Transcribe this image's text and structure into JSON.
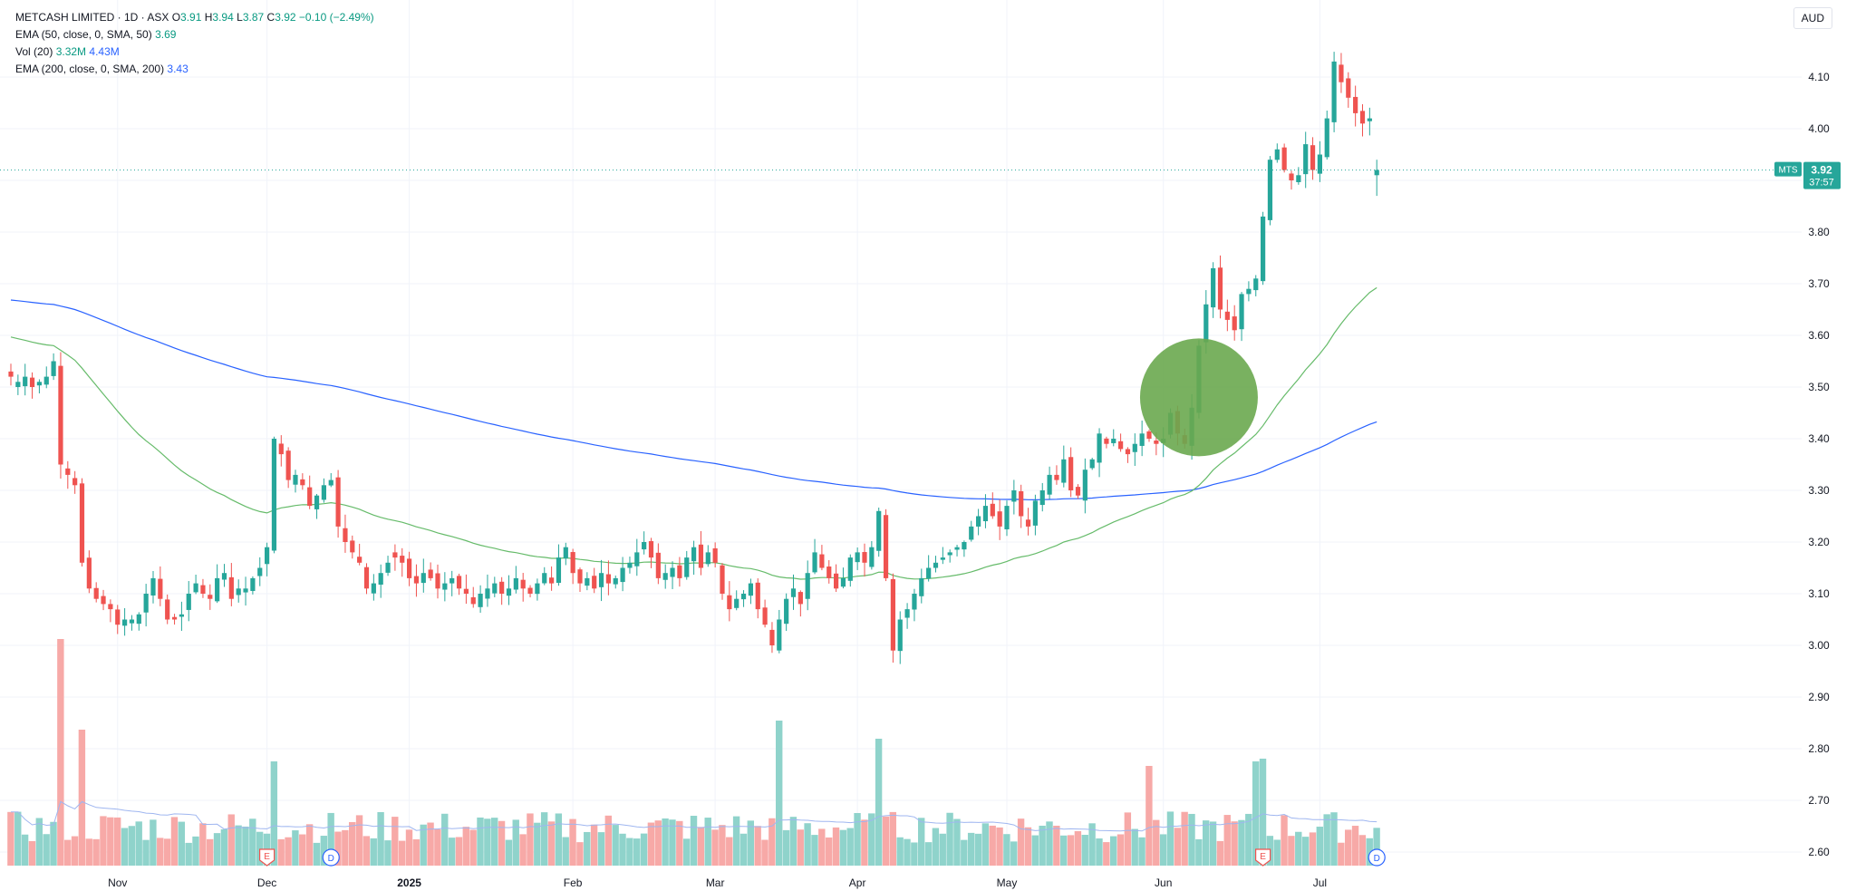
{
  "legend": {
    "title": "METCASH LIMITED · 1D · ASX",
    "ohlc": {
      "o_label": "O",
      "o": "3.91",
      "h_label": "H",
      "h": "3.94",
      "l_label": "L",
      "l": "3.87",
      "c_label": "C",
      "c": "3.92",
      "change": "−0.10 (−2.49%)"
    },
    "ema50": {
      "label": "EMA (50, close, 0, SMA, 50)",
      "value": "3.69"
    },
    "vol": {
      "label": "Vol (20)",
      "value1": "3.32M",
      "value2": "4.43M"
    },
    "ema200": {
      "label": "EMA (200, close, 0, SMA, 200)",
      "value": "3.43"
    }
  },
  "currency": "AUD",
  "price_badge": {
    "symbol": "MTS",
    "price": "3.92",
    "countdown": "37:57"
  },
  "colors": {
    "up": "#26a69a",
    "up_text": "#089981",
    "down": "#ef5350",
    "ema50": "#66bb6a",
    "ema200": "#2962ff",
    "vol_up": "#8fd3cb",
    "vol_down": "#f7a9a7",
    "highlight": "#6aa84f"
  },
  "chart_data": {
    "type": "candlestick",
    "y_axis": {
      "min": 2.55,
      "max": 4.2,
      "ticks": [
        2.6,
        2.7,
        2.8,
        2.9,
        3.0,
        3.1,
        3.2,
        3.3,
        3.4,
        3.5,
        3.6,
        3.7,
        3.8,
        3.9,
        4.0,
        4.1
      ],
      "tick_labels": [
        "2.60",
        "2.70",
        "2.80",
        "2.90",
        "3.00",
        "3.10",
        "3.20",
        "3.30",
        "3.40",
        "3.50",
        "3.60",
        "3.70",
        "3.80",
        "3.90",
        "4.00",
        "4.10"
      ]
    },
    "x_labels": [
      {
        "label": "Nov",
        "index": 15,
        "bold": false
      },
      {
        "label": "Dec",
        "index": 36,
        "bold": false
      },
      {
        "label": "2025",
        "index": 56,
        "bold": true
      },
      {
        "label": "Feb",
        "index": 79,
        "bold": false
      },
      {
        "label": "Mar",
        "index": 99,
        "bold": false
      },
      {
        "label": "Apr",
        "index": 119,
        "bold": false
      },
      {
        "label": "May",
        "index": 140,
        "bold": false
      },
      {
        "label": "Jun",
        "index": 162,
        "bold": false
      },
      {
        "label": "Jul",
        "index": 184,
        "bold": false
      }
    ],
    "last_price": 3.92,
    "events": [
      {
        "type": "E",
        "index": 36
      },
      {
        "type": "D",
        "index": 45
      },
      {
        "type": "E",
        "index": 176
      },
      {
        "type": "D",
        "index": 192
      }
    ],
    "highlight_circle": {
      "index": 167,
      "price": 3.48
    },
    "closes": [
      3.52,
      3.51,
      3.52,
      3.5,
      3.51,
      3.52,
      3.55,
      3.35,
      3.33,
      3.31,
      3.16,
      3.11,
      3.09,
      3.08,
      3.07,
      3.04,
      3.05,
      3.05,
      3.06,
      3.1,
      3.13,
      3.09,
      3.05,
      3.05,
      3.06,
      3.1,
      3.12,
      3.1,
      3.09,
      3.13,
      3.14,
      3.09,
      3.11,
      3.11,
      3.13,
      3.15,
      3.19,
      3.4,
      3.37,
      3.32,
      3.33,
      3.31,
      3.27,
      3.29,
      3.31,
      3.32,
      3.23,
      3.2,
      3.18,
      3.16,
      3.11,
      3.12,
      3.14,
      3.16,
      3.17,
      3.16,
      3.13,
      3.12,
      3.14,
      3.13,
      3.11,
      3.12,
      3.13,
      3.11,
      3.1,
      3.08,
      3.1,
      3.11,
      3.12,
      3.1,
      3.11,
      3.13,
      3.11,
      3.1,
      3.12,
      3.14,
      3.12,
      3.17,
      3.19,
      3.14,
      3.12,
      3.13,
      3.11,
      3.14,
      3.12,
      3.13,
      3.15,
      3.16,
      3.18,
      3.2,
      3.17,
      3.13,
      3.14,
      3.15,
      3.13,
      3.17,
      3.19,
      3.15,
      3.18,
      3.16,
      3.1,
      3.07,
      3.09,
      3.1,
      3.12,
      3.07,
      3.04,
      3.0,
      3.05,
      3.09,
      3.11,
      3.08,
      3.14,
      3.18,
      3.15,
      3.13,
      3.11,
      3.13,
      3.17,
      3.18,
      3.16,
      3.19,
      3.26,
      3.13,
      2.99,
      3.05,
      3.07,
      3.1,
      3.13,
      3.15,
      3.16,
      3.17,
      3.18,
      3.19,
      3.2,
      3.23,
      3.25,
      3.27,
      3.25,
      3.23,
      3.27,
      3.3,
      3.25,
      3.23,
      3.28,
      3.3,
      3.33,
      3.32,
      3.36,
      3.3,
      3.29,
      3.34,
      3.36,
      3.41,
      3.39,
      3.4,
      3.38,
      3.37,
      3.39,
      3.41,
      3.4,
      3.39,
      3.4,
      3.45,
      3.41,
      3.39,
      3.46,
      3.58,
      3.66,
      3.73,
      3.65,
      3.63,
      3.61,
      3.68,
      3.69,
      3.71,
      3.83,
      3.94,
      3.96,
      3.92,
      3.9,
      3.91,
      3.97,
      3.92,
      3.95,
      4.02,
      4.13,
      4.09,
      4.06,
      4.03,
      4.01,
      4.02,
      3.92
    ]
  }
}
